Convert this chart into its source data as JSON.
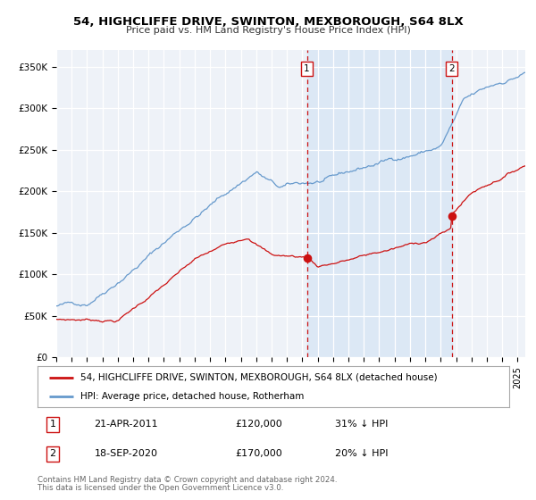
{
  "title": "54, HIGHCLIFFE DRIVE, SWINTON, MEXBOROUGH, S64 8LX",
  "subtitle": "Price paid vs. HM Land Registry's House Price Index (HPI)",
  "ylabel_ticks": [
    "£0",
    "£50K",
    "£100K",
    "£150K",
    "£200K",
    "£250K",
    "£300K",
    "£350K"
  ],
  "ytick_values": [
    0,
    50000,
    100000,
    150000,
    200000,
    250000,
    300000,
    350000
  ],
  "ylim": [
    0,
    370000
  ],
  "xlim_start": 1995.0,
  "xlim_end": 2025.5,
  "hpi_color": "#6699cc",
  "price_color": "#cc1111",
  "marker1_date": 2011.3,
  "marker1_price": 120000,
  "marker2_date": 2020.72,
  "marker2_price": 170000,
  "legend_entry1": "54, HIGHCLIFFE DRIVE, SWINTON, MEXBOROUGH, S64 8LX (detached house)",
  "legend_entry2": "HPI: Average price, detached house, Rotherham",
  "annotation1_date": "21-APR-2011",
  "annotation1_price": "£120,000",
  "annotation1_hpi": "31% ↓ HPI",
  "annotation2_date": "18-SEP-2020",
  "annotation2_price": "£170,000",
  "annotation2_hpi": "20% ↓ HPI",
  "footnote1": "Contains HM Land Registry data © Crown copyright and database right 2024.",
  "footnote2": "This data is licensed under the Open Government Licence v3.0.",
  "background_color": "#eef2f8",
  "shaded_region_color": "#dce8f5",
  "grid_color": "#ffffff",
  "spine_color": "#cccccc"
}
